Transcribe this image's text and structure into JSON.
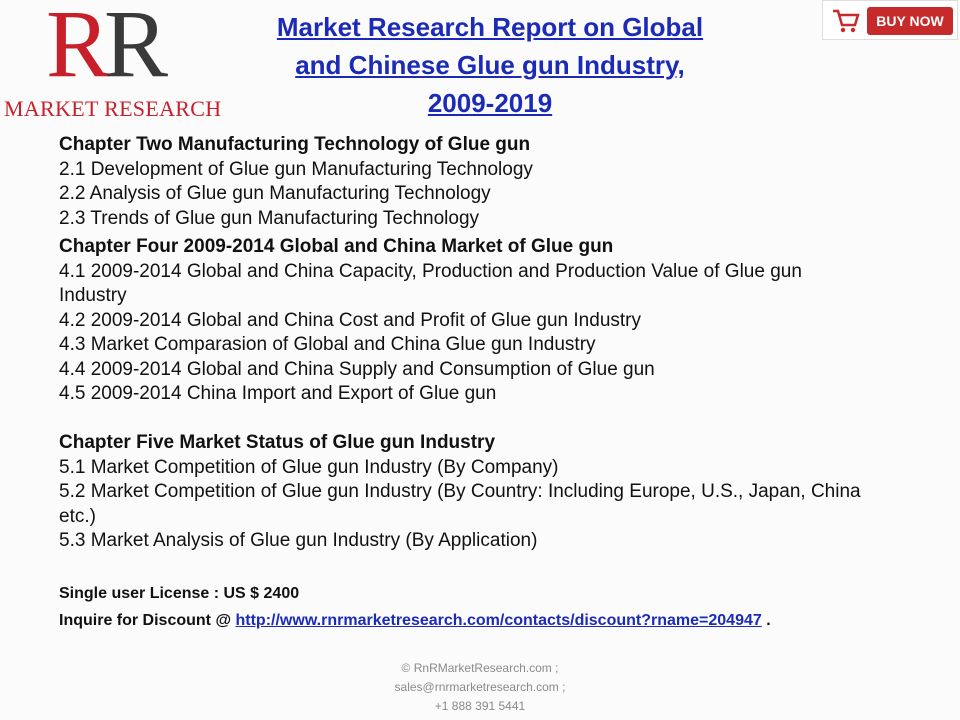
{
  "logo": {
    "mark_left": "R",
    "mark_right": "R",
    "name": "MARKET RESEARCH"
  },
  "title": {
    "lines": [
      "Market Research Report on Global",
      "and Chinese Glue gun Industry,",
      "2009-2019"
    ]
  },
  "buy_button": "BUY NOW",
  "chapters": [
    {
      "heading": "Chapter Two Manufacturing Technology of Glue gun",
      "items": [
        "2.1 Development of Glue gun Manufacturing Technology",
        "2.2 Analysis of Glue gun Manufacturing Technology",
        "2.3 Trends of Glue gun Manufacturing Technology"
      ]
    },
    {
      "heading": "Chapter Four 2009-2014 Global and China Market of Glue gun",
      "items": [
        "4.1 2009-2014 Global and China Capacity, Production and Production Value of Glue gun Industry",
        "4.2 2009-2014 Global and China Cost and Profit of Glue gun Industry",
        "4.3 Market Comparasion of Global and China Glue gun Industry",
        "4.4 2009-2014 Global and China Supply and Consumption of Glue gun",
        "4.5 2009-2014 China Import and Export of Glue gun"
      ]
    },
    {
      "heading": "Chapter Five Market Status of Glue gun Industry",
      "items": [
        "5.1 Market Competition of Glue gun Industry (By Company)",
        "5.2 Market Competition of Glue gun Industry (By Country: Including Europe, U.S., Japan, China etc.)",
        "5.3 Market Analysis of Glue gun Industry (By Application)"
      ]
    }
  ],
  "license": "Single user License : US $ 2400",
  "inquire": {
    "label": "Inquire for Discount @",
    "link": "http://www.rnrmarketresearch.com/contacts/discount?rname=204947",
    "end": "."
  },
  "footer": [
    "© RnRMarketResearch.com ;",
    "sales@rnrmarketresearch.com ;",
    "+1 888 391 5441"
  ]
}
